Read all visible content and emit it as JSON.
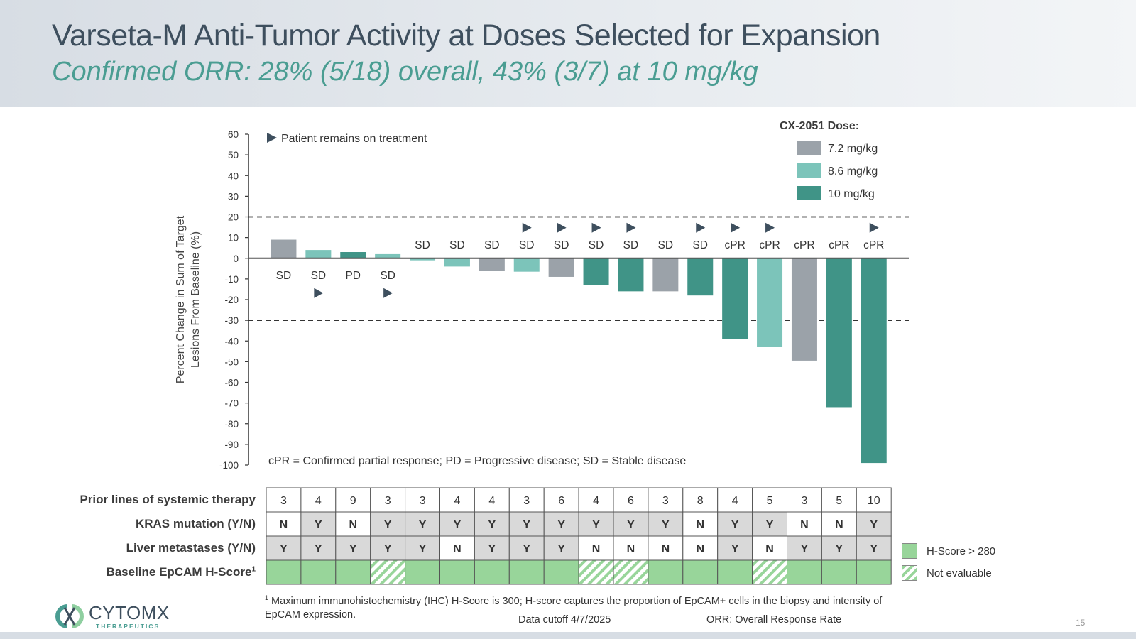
{
  "header": {
    "title": "Varseta-M Anti-Tumor Activity at Doses Selected for Expansion",
    "subtitle": "Confirmed ORR: 28% (5/18) overall, 43% (3/7) at 10 mg/kg"
  },
  "chart_data": {
    "type": "bar",
    "ylabel_line1": "Percent Change in Sum of Target",
    "ylabel_line2": "Lesions From Baseline (%)",
    "ylim": [
      -100,
      60
    ],
    "yticks": [
      60,
      50,
      40,
      30,
      20,
      10,
      0,
      -10,
      -20,
      -30,
      -40,
      -50,
      -60,
      -70,
      -80,
      -90,
      -100
    ],
    "reference_lines": [
      20,
      -30
    ],
    "legend_title": "CX-2051 Dose:",
    "legend": [
      {
        "name": "7.2 mg/kg",
        "color": "#9ba2a9"
      },
      {
        "name": "8.6 mg/kg",
        "color": "#7cc4ba"
      },
      {
        "name": "10 mg/kg",
        "color": "#409487"
      }
    ],
    "on_treatment_note": "Patient remains on treatment",
    "abbrev_note": "cPR = Confirmed partial response; PD = Progressive disease; SD = Stable disease",
    "values": [
      9,
      4,
      3,
      2,
      -1,
      -4,
      -6,
      -6.5,
      -9,
      -13,
      -16,
      -16,
      -18,
      -39,
      -43,
      -49.5,
      -72,
      -99
    ],
    "doses": [
      "7.2 mg/kg",
      "8.6 mg/kg",
      "10 mg/kg",
      "8.6 mg/kg",
      "8.6 mg/kg",
      "8.6 mg/kg",
      "7.2 mg/kg",
      "8.6 mg/kg",
      "7.2 mg/kg",
      "10 mg/kg",
      "10 mg/kg",
      "7.2 mg/kg",
      "10 mg/kg",
      "10 mg/kg",
      "8.6 mg/kg",
      "7.2 mg/kg",
      "10 mg/kg",
      "10 mg/kg"
    ],
    "responses": [
      "SD",
      "SD",
      "PD",
      "SD",
      "SD",
      "SD",
      "SD",
      "SD",
      "SD",
      "SD",
      "SD",
      "SD",
      "SD",
      "cPR",
      "cPR",
      "cPR",
      "cPR",
      "cPR"
    ],
    "on_treatment": [
      false,
      true,
      false,
      true,
      false,
      false,
      false,
      true,
      true,
      true,
      true,
      false,
      true,
      true,
      true,
      false,
      false,
      true
    ]
  },
  "table": {
    "rows": [
      {
        "label": "Prior lines of systemic therapy",
        "cells": [
          "3",
          "4",
          "9",
          "3",
          "3",
          "4",
          "4",
          "3",
          "6",
          "4",
          "6",
          "3",
          "8",
          "4",
          "5",
          "3",
          "5",
          "10"
        ],
        "shaded": [
          false,
          false,
          false,
          false,
          false,
          false,
          false,
          false,
          false,
          false,
          false,
          false,
          false,
          false,
          false,
          false,
          false,
          false
        ]
      },
      {
        "label": "KRAS mutation (Y/N)",
        "cells": [
          "N",
          "Y",
          "N",
          "Y",
          "Y",
          "Y",
          "Y",
          "Y",
          "Y",
          "Y",
          "Y",
          "Y",
          "N",
          "Y",
          "Y",
          "N",
          "N",
          "Y"
        ],
        "shaded": [
          false,
          true,
          false,
          true,
          true,
          true,
          true,
          true,
          true,
          true,
          true,
          true,
          false,
          true,
          true,
          false,
          false,
          true
        ]
      },
      {
        "label": "Liver metastases (Y/N)",
        "cells": [
          "Y",
          "Y",
          "Y",
          "Y",
          "Y",
          "N",
          "Y",
          "Y",
          "Y",
          "N",
          "N",
          "N",
          "N",
          "Y",
          "N",
          "Y",
          "Y",
          "Y"
        ],
        "shaded": [
          true,
          true,
          true,
          true,
          true,
          false,
          true,
          true,
          true,
          false,
          false,
          false,
          false,
          true,
          false,
          true,
          true,
          true
        ]
      }
    ],
    "hscore_label": "Baseline EpCAM H-Score",
    "hscore_sup": "1",
    "hscore": [
      "high",
      "high",
      "high",
      "ne",
      "high",
      "high",
      "high",
      "high",
      "high",
      "ne",
      "ne",
      "high",
      "high",
      "high",
      "ne",
      "high",
      "high",
      "high"
    ],
    "hscore_legend": [
      {
        "key": "high",
        "label": "H-Score > 280"
      },
      {
        "key": "ne",
        "label": "Not evaluable"
      }
    ]
  },
  "footer": {
    "footnote_sup": "1",
    "footnote": "Maximum immunohistochemistry (IHC) H-Score is 300; H-score captures the proportion of EpCAM+ cells in the biopsy and intensity of EpCAM expression.",
    "cutoff": "Data cutoff 4/7/2025",
    "orr_def": "ORR: Overall Response Rate",
    "page": "15",
    "logo_name": "CYTOMX",
    "logo_sub": "THERAPEUTICS"
  },
  "colors": {
    "dose_7_2": "#9ba2a9",
    "dose_8_6": "#7cc4ba",
    "dose_10": "#409487",
    "hscore_high": "#98d59a",
    "table_shade": "#d9d9d9",
    "title": "#3e4f5e",
    "subtitle": "#4a9d92"
  }
}
